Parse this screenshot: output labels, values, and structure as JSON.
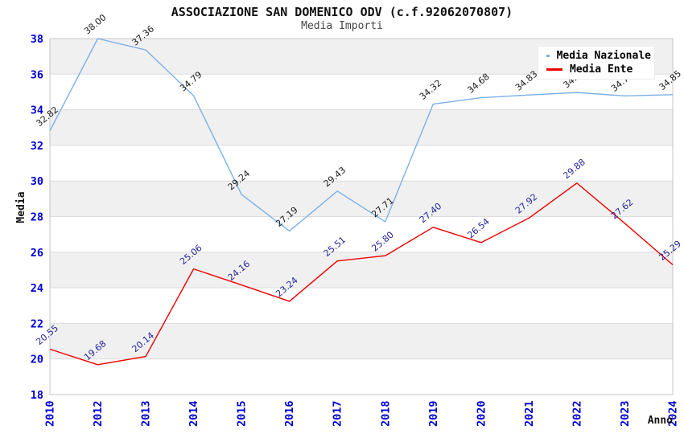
{
  "title": "ASSOCIAZIONE SAN DOMENICO ODV (c.f.92062070807)",
  "subtitle": "Media Importi",
  "legend": {
    "items": [
      {
        "label": "Media Nazionale",
        "color": "#7CB0E6"
      },
      {
        "label": "Media Ente",
        "color": "#EE0000"
      }
    ]
  },
  "chart_data": {
    "type": "line",
    "title": "ASSOCIAZIONE SAN DOMENICO ODV (c.f.92062070807)",
    "subtitle": "Media Importi",
    "xlabel": "Anno",
    "ylabel": "Media",
    "categories": [
      "2010",
      "2012",
      "2013",
      "2014",
      "2015",
      "2016",
      "2017",
      "2018",
      "2019",
      "2020",
      "2021",
      "2022",
      "2023",
      "2024"
    ],
    "ylim": [
      18,
      38
    ],
    "y_ticks": [
      38,
      36,
      34,
      32,
      30,
      28,
      26,
      24,
      22,
      20,
      18
    ],
    "grid": true,
    "legend_position": "top-right",
    "band_colors": [
      "#f0f0f0",
      "#ffffff"
    ],
    "gridline_color": "#dcdcdc",
    "plot_border_color": "#c4c4c4",
    "axis_tick_color": "#0000D0",
    "series": [
      {
        "name": "Media Nazionale",
        "color": "#7CB0E6",
        "label_color": "#1a1a1a",
        "values": [
          32.82,
          38.0,
          37.36,
          34.79,
          29.24,
          27.19,
          29.43,
          27.71,
          34.32,
          34.68,
          34.83,
          34.97,
          34.78,
          34.85
        ],
        "labels": [
          "32.82",
          "38.00",
          "37.36",
          "34.79",
          "29.24",
          "27.19",
          "29.43",
          "27.71",
          "34.32",
          "34.68",
          "34.83",
          "34.97",
          "34.78",
          "34.85"
        ]
      },
      {
        "name": "Media Ente",
        "color": "#EE0000",
        "label_color": "#222299",
        "values": [
          20.55,
          19.68,
          20.14,
          25.06,
          24.16,
          23.24,
          25.51,
          25.8,
          27.4,
          26.54,
          27.92,
          29.88,
          27.62,
          25.29
        ],
        "labels": [
          "20.55",
          "19.68",
          "20.14",
          "25.06",
          "24.16",
          "23.24",
          "25.51",
          "25.80",
          "27.40",
          "26.54",
          "27.92",
          "29.88",
          "27.62",
          "25.29"
        ]
      }
    ]
  }
}
